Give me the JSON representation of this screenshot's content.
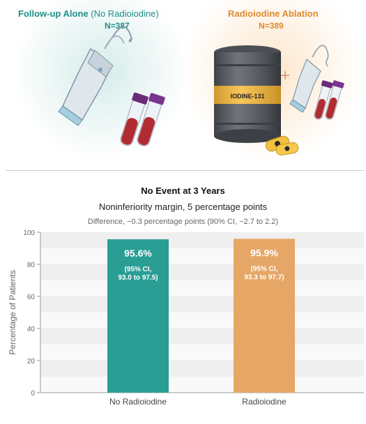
{
  "arms": [
    {
      "title": "Follow-up Alone",
      "title_paren": "(No Radioiodine)",
      "n": "N=387",
      "color": "#1f8f8a",
      "illustration": "ultrasound-probe-and-blood-tubes-icon"
    },
    {
      "title": "Radioiodine Ablation",
      "n": "N=389",
      "color": "#e08a2e",
      "illustration": "iodine-131-canister-capsules-probe-tubes-icon",
      "canister_label": "IODINE-131",
      "plus_sign": "+"
    }
  ],
  "chart_data": {
    "type": "bar",
    "title": "No Event at 3 Years",
    "subtitle": "Noninferiority margin, 5 percentage points",
    "note": "Difference, −0.3 percentage points (90% CI, −2.7 to 2.2)",
    "categories": [
      "No Radioiodine",
      "Radioiodine"
    ],
    "values": [
      95.6,
      95.9
    ],
    "value_labels": [
      "95.6%",
      "95.9%"
    ],
    "ci_labels": [
      [
        "(95% CI,",
        "93.0 to 97.5)"
      ],
      [
        "(95% CI,",
        "93.3 to 97.7)"
      ]
    ],
    "bar_colors": [
      "#2a9d94",
      "#e6a665"
    ],
    "ylabel": "Percentage of Patients",
    "xlabel": "",
    "ylim": [
      0,
      100
    ],
    "yticks": [
      0,
      20,
      40,
      60,
      80,
      100
    ],
    "grid": "alternating horizontal bands"
  }
}
